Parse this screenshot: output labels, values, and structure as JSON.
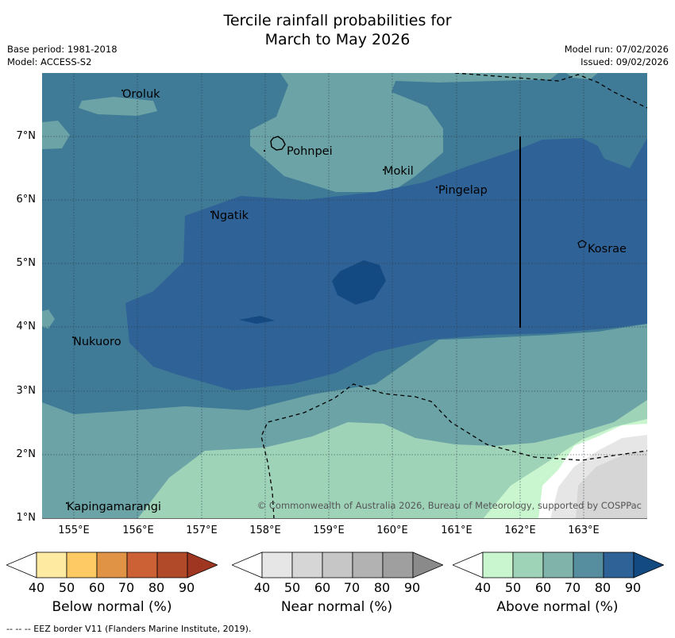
{
  "title": {
    "line1": "Tercile rainfall probabilities for",
    "line2": "March to May 2026"
  },
  "meta": {
    "base_period": "Base period: 1981-2018",
    "model": "Model: ACCESS-S2",
    "model_run": "Model run: 07/02/2026",
    "issued": "Issued: 09/02/2026"
  },
  "lat_labels": [
    "7°N",
    "6°N",
    "5°N",
    "4°N",
    "3°N",
    "2°N",
    "1°N"
  ],
  "lon_labels": [
    "155°E",
    "156°E",
    "157°E",
    "158°E",
    "159°E",
    "160°E",
    "161°E",
    "162°E",
    "163°E"
  ],
  "places": {
    "oroluk": "Oroluk",
    "pohnpei": "Pohnpei",
    "mokil": "Mokil",
    "pingelap": "Pingelap",
    "ngatik": "Ngatik",
    "kosrae": "Kosrae",
    "nukuoro": "Nukuoro",
    "kapingamarangi": "Kapingamarangi"
  },
  "copyright": "© Commonwealth of Australia 2026, Bureau of Meteorology, supported by COSPPac",
  "colorbars": [
    {
      "label": "Below normal (%)",
      "ticks": [
        "40",
        "50",
        "60",
        "70",
        "80",
        "90"
      ],
      "colors": [
        "#ffffff",
        "#feeaa0",
        "#fdca63",
        "#e09245",
        "#cb6134",
        "#b04a29",
        "#9e3621"
      ]
    },
    {
      "label": "Near normal (%)",
      "ticks": [
        "40",
        "50",
        "60",
        "70",
        "80",
        "90"
      ],
      "colors": [
        "#ffffff",
        "#e6e6e6",
        "#d6d6d6",
        "#c6c6c6",
        "#b2b2b2",
        "#9f9f9f",
        "#8a8a8a"
      ]
    },
    {
      "label": "Above normal (%)",
      "ticks": [
        "40",
        "50",
        "60",
        "70",
        "80",
        "90"
      ],
      "colors": [
        "#ffffff",
        "#c9f6cf",
        "#9fd3b8",
        "#80b4ab",
        "#568d9f",
        "#2f6297",
        "#144a82"
      ]
    }
  ],
  "footer": "--  --  -- EEZ border V11 (Flanders Marine Institute, 2019)."
}
